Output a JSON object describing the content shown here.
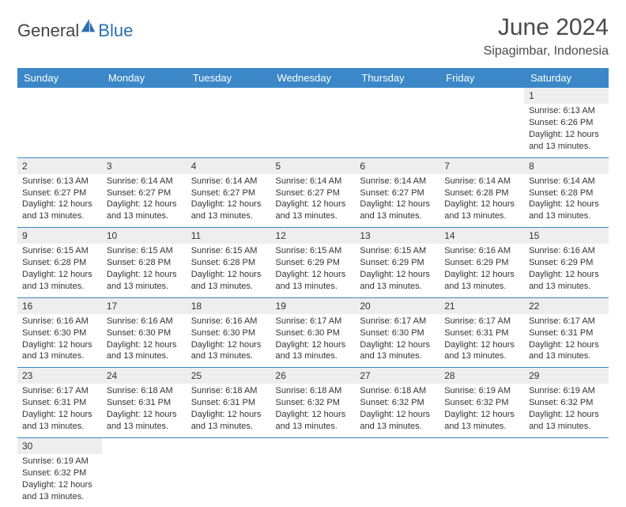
{
  "brand": {
    "general": "General",
    "blue": "Blue"
  },
  "title": "June 2024",
  "location": "Sipagimbar, Indonesia",
  "colors": {
    "header_bg": "#3b87c8",
    "header_text": "#ffffff",
    "row_divider": "#3b87c8",
    "daynum_bg": "#eeeeee",
    "empty_bg": "#eeeeee",
    "body_text": "#333333",
    "title_text": "#4a4a4a",
    "logo_blue": "#2a6fb0"
  },
  "typography": {
    "title_fontsize": 30,
    "location_fontsize": 16,
    "header_fontsize": 13,
    "cell_fontsize": 11,
    "daynum_fontsize": 12
  },
  "weekdays": [
    "Sunday",
    "Monday",
    "Tuesday",
    "Wednesday",
    "Thursday",
    "Friday",
    "Saturday"
  ],
  "weeks": [
    [
      null,
      null,
      null,
      null,
      null,
      null,
      {
        "n": "1",
        "sr": "Sunrise: 6:13 AM",
        "ss": "Sunset: 6:26 PM",
        "d1": "Daylight: 12 hours",
        "d2": "and 13 minutes."
      }
    ],
    [
      {
        "n": "2",
        "sr": "Sunrise: 6:13 AM",
        "ss": "Sunset: 6:27 PM",
        "d1": "Daylight: 12 hours",
        "d2": "and 13 minutes."
      },
      {
        "n": "3",
        "sr": "Sunrise: 6:14 AM",
        "ss": "Sunset: 6:27 PM",
        "d1": "Daylight: 12 hours",
        "d2": "and 13 minutes."
      },
      {
        "n": "4",
        "sr": "Sunrise: 6:14 AM",
        "ss": "Sunset: 6:27 PM",
        "d1": "Daylight: 12 hours",
        "d2": "and 13 minutes."
      },
      {
        "n": "5",
        "sr": "Sunrise: 6:14 AM",
        "ss": "Sunset: 6:27 PM",
        "d1": "Daylight: 12 hours",
        "d2": "and 13 minutes."
      },
      {
        "n": "6",
        "sr": "Sunrise: 6:14 AM",
        "ss": "Sunset: 6:27 PM",
        "d1": "Daylight: 12 hours",
        "d2": "and 13 minutes."
      },
      {
        "n": "7",
        "sr": "Sunrise: 6:14 AM",
        "ss": "Sunset: 6:28 PM",
        "d1": "Daylight: 12 hours",
        "d2": "and 13 minutes."
      },
      {
        "n": "8",
        "sr": "Sunrise: 6:14 AM",
        "ss": "Sunset: 6:28 PM",
        "d1": "Daylight: 12 hours",
        "d2": "and 13 minutes."
      }
    ],
    [
      {
        "n": "9",
        "sr": "Sunrise: 6:15 AM",
        "ss": "Sunset: 6:28 PM",
        "d1": "Daylight: 12 hours",
        "d2": "and 13 minutes."
      },
      {
        "n": "10",
        "sr": "Sunrise: 6:15 AM",
        "ss": "Sunset: 6:28 PM",
        "d1": "Daylight: 12 hours",
        "d2": "and 13 minutes."
      },
      {
        "n": "11",
        "sr": "Sunrise: 6:15 AM",
        "ss": "Sunset: 6:28 PM",
        "d1": "Daylight: 12 hours",
        "d2": "and 13 minutes."
      },
      {
        "n": "12",
        "sr": "Sunrise: 6:15 AM",
        "ss": "Sunset: 6:29 PM",
        "d1": "Daylight: 12 hours",
        "d2": "and 13 minutes."
      },
      {
        "n": "13",
        "sr": "Sunrise: 6:15 AM",
        "ss": "Sunset: 6:29 PM",
        "d1": "Daylight: 12 hours",
        "d2": "and 13 minutes."
      },
      {
        "n": "14",
        "sr": "Sunrise: 6:16 AM",
        "ss": "Sunset: 6:29 PM",
        "d1": "Daylight: 12 hours",
        "d2": "and 13 minutes."
      },
      {
        "n": "15",
        "sr": "Sunrise: 6:16 AM",
        "ss": "Sunset: 6:29 PM",
        "d1": "Daylight: 12 hours",
        "d2": "and 13 minutes."
      }
    ],
    [
      {
        "n": "16",
        "sr": "Sunrise: 6:16 AM",
        "ss": "Sunset: 6:30 PM",
        "d1": "Daylight: 12 hours",
        "d2": "and 13 minutes."
      },
      {
        "n": "17",
        "sr": "Sunrise: 6:16 AM",
        "ss": "Sunset: 6:30 PM",
        "d1": "Daylight: 12 hours",
        "d2": "and 13 minutes."
      },
      {
        "n": "18",
        "sr": "Sunrise: 6:16 AM",
        "ss": "Sunset: 6:30 PM",
        "d1": "Daylight: 12 hours",
        "d2": "and 13 minutes."
      },
      {
        "n": "19",
        "sr": "Sunrise: 6:17 AM",
        "ss": "Sunset: 6:30 PM",
        "d1": "Daylight: 12 hours",
        "d2": "and 13 minutes."
      },
      {
        "n": "20",
        "sr": "Sunrise: 6:17 AM",
        "ss": "Sunset: 6:30 PM",
        "d1": "Daylight: 12 hours",
        "d2": "and 13 minutes."
      },
      {
        "n": "21",
        "sr": "Sunrise: 6:17 AM",
        "ss": "Sunset: 6:31 PM",
        "d1": "Daylight: 12 hours",
        "d2": "and 13 minutes."
      },
      {
        "n": "22",
        "sr": "Sunrise: 6:17 AM",
        "ss": "Sunset: 6:31 PM",
        "d1": "Daylight: 12 hours",
        "d2": "and 13 minutes."
      }
    ],
    [
      {
        "n": "23",
        "sr": "Sunrise: 6:17 AM",
        "ss": "Sunset: 6:31 PM",
        "d1": "Daylight: 12 hours",
        "d2": "and 13 minutes."
      },
      {
        "n": "24",
        "sr": "Sunrise: 6:18 AM",
        "ss": "Sunset: 6:31 PM",
        "d1": "Daylight: 12 hours",
        "d2": "and 13 minutes."
      },
      {
        "n": "25",
        "sr": "Sunrise: 6:18 AM",
        "ss": "Sunset: 6:31 PM",
        "d1": "Daylight: 12 hours",
        "d2": "and 13 minutes."
      },
      {
        "n": "26",
        "sr": "Sunrise: 6:18 AM",
        "ss": "Sunset: 6:32 PM",
        "d1": "Daylight: 12 hours",
        "d2": "and 13 minutes."
      },
      {
        "n": "27",
        "sr": "Sunrise: 6:18 AM",
        "ss": "Sunset: 6:32 PM",
        "d1": "Daylight: 12 hours",
        "d2": "and 13 minutes."
      },
      {
        "n": "28",
        "sr": "Sunrise: 6:19 AM",
        "ss": "Sunset: 6:32 PM",
        "d1": "Daylight: 12 hours",
        "d2": "and 13 minutes."
      },
      {
        "n": "29",
        "sr": "Sunrise: 6:19 AM",
        "ss": "Sunset: 6:32 PM",
        "d1": "Daylight: 12 hours",
        "d2": "and 13 minutes."
      }
    ],
    [
      {
        "n": "30",
        "sr": "Sunrise: 6:19 AM",
        "ss": "Sunset: 6:32 PM",
        "d1": "Daylight: 12 hours",
        "d2": "and 13 minutes."
      },
      null,
      null,
      null,
      null,
      null,
      null
    ]
  ]
}
